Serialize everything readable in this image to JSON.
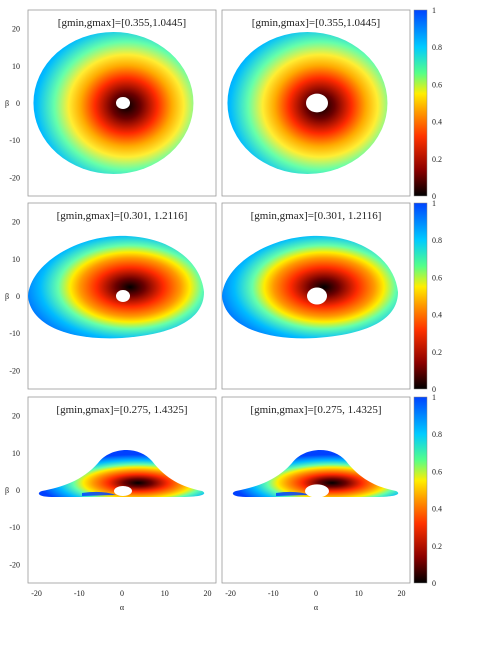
{
  "chart_data": {
    "type": "heatmap",
    "colorbar": {
      "ticks": [
        "1",
        "0.8",
        "0.6",
        "0.4",
        "0.2",
        "0"
      ],
      "range": [
        0,
        1
      ],
      "colormap": [
        "#000000",
        "#8b0000",
        "#ff3300",
        "#ff9900",
        "#ffee00",
        "#55ff88",
        "#00ccff",
        "#0044ff"
      ]
    },
    "x_ticks": [
      "-20",
      "-10",
      "0",
      "10",
      "20"
    ],
    "y_ticks": [
      "20",
      "10",
      "0",
      "-10",
      "-20"
    ],
    "xlabel": "α",
    "ylabel": "β",
    "xlim": [
      -22,
      22
    ],
    "ylim": [
      -25,
      25
    ],
    "rows": [
      {
        "annotation": "[gmin,gmax]=[0.355,1.0445]",
        "annotation_right": "[gmin,gmax]=[0.355,1.0445]",
        "gmin": 0.355,
        "gmax": 1.0445
      },
      {
        "annotation": "[gmin,gmax]=[0.301, 1.2116]",
        "annotation_right": "[gmin,gmax]=[0.301, 1.2116]",
        "gmin": 0.301,
        "gmax": 1.2116
      },
      {
        "annotation": "[gmin,gmax]=[0.275, 1.4325]",
        "annotation_right": "[gmin,gmax]=[0.275, 1.4325]",
        "gmin": 0.275,
        "gmax": 1.4325
      }
    ]
  }
}
